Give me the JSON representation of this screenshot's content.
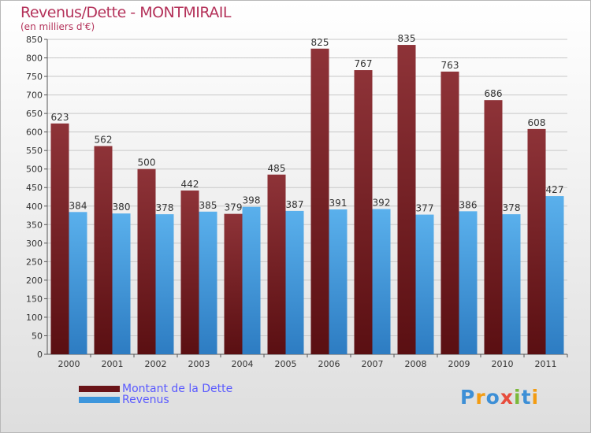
{
  "title": "Revenus/Dette - MONTMIRAIL",
  "subtitle": "(en milliers d'€)",
  "legend": {
    "debt_label": "Montant de la Dette",
    "revenue_label": "Revenus"
  },
  "logo": {
    "text": "Proxiti",
    "letters": [
      "P",
      "r",
      "o",
      "x",
      "i",
      "t",
      "i"
    ],
    "colors": [
      "#3d8fd6",
      "#f39c12",
      "#3d8fd6",
      "#e74c3c",
      "#7bb93a",
      "#3d8fd6",
      "#f39c12"
    ]
  },
  "colors": {
    "debt": "#7a2a2e",
    "revenue": "#3d96dc",
    "title": "#b4325a",
    "legend_text": "#5a5aff"
  },
  "chart_data": {
    "type": "bar",
    "categories": [
      "2000",
      "2001",
      "2002",
      "2003",
      "2004",
      "2005",
      "2006",
      "2007",
      "2008",
      "2009",
      "2010",
      "2011"
    ],
    "series": [
      {
        "name": "Montant de la Dette",
        "values": [
          623,
          562,
          500,
          442,
          379,
          485,
          825,
          767,
          835,
          763,
          686,
          608
        ]
      },
      {
        "name": "Revenus",
        "values": [
          384,
          380,
          378,
          385,
          398,
          387,
          391,
          392,
          377,
          386,
          378,
          427
        ]
      }
    ],
    "ylim": [
      0,
      850
    ],
    "yticks": [
      0,
      50,
      100,
      150,
      200,
      250,
      300,
      350,
      400,
      450,
      500,
      550,
      600,
      650,
      700,
      750,
      800,
      850
    ],
    "grid": true
  }
}
